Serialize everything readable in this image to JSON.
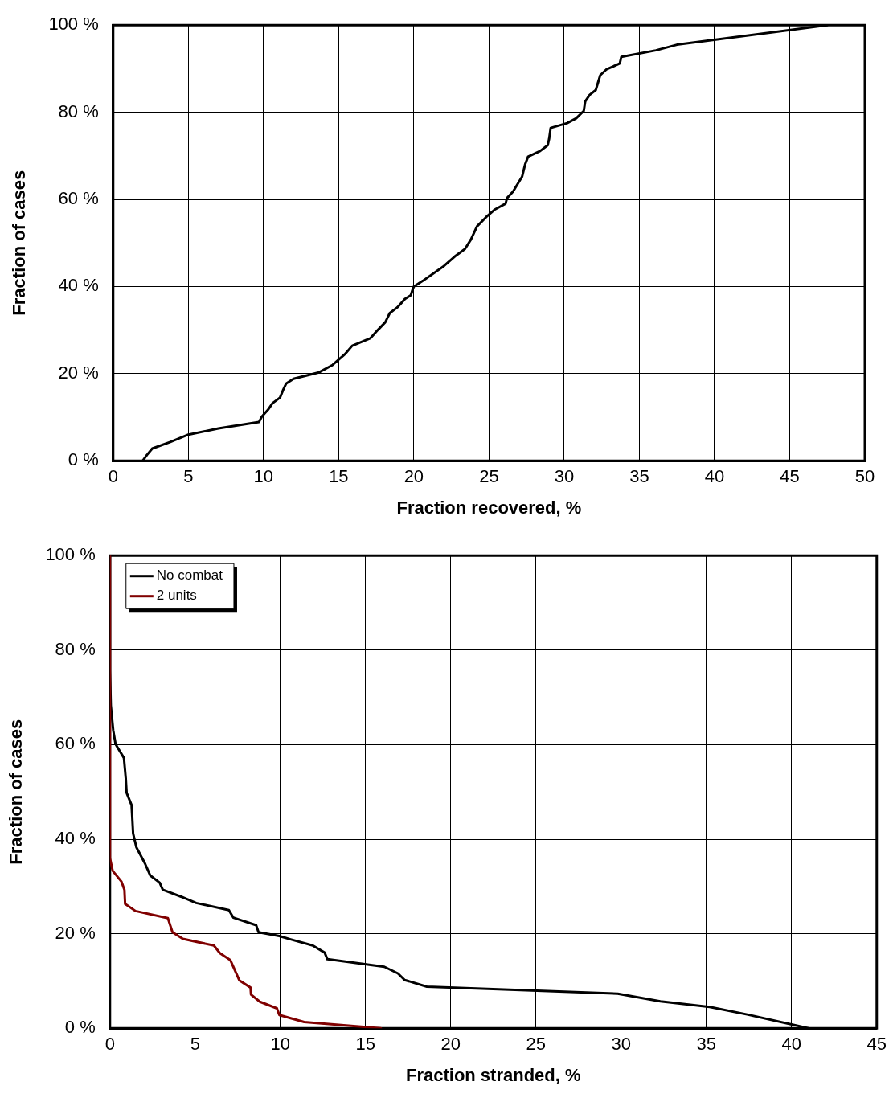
{
  "chart_data": [
    {
      "type": "line",
      "xlabel": "Fraction recovered, %",
      "ylabel": "Fraction of cases",
      "xlim": [
        0,
        50
      ],
      "ylim": [
        0,
        100
      ],
      "xticks": [
        0,
        5,
        10,
        15,
        20,
        25,
        30,
        35,
        40,
        45,
        50
      ],
      "yticks": [
        {
          "value": 0,
          "label": "0 %"
        },
        {
          "value": 20,
          "label": "20 %"
        },
        {
          "value": 40,
          "label": "40 %"
        },
        {
          "value": 60,
          "label": "60 %"
        },
        {
          "value": 80,
          "label": "80 %"
        },
        {
          "value": 100,
          "label": "100 %"
        }
      ],
      "grid": true,
      "marker": "none",
      "line_style": "solid",
      "series": [
        {
          "color": "#000000",
          "x": [
            1.97,
            2.24,
            2.6,
            3.8,
            5.0,
            7.0,
            9.7,
            9.9,
            10.3,
            10.6,
            11.1,
            11.3,
            11.5,
            12.0,
            13.7,
            14.6,
            15.4,
            15.9,
            17.1,
            17.6,
            18.1,
            18.4,
            18.9,
            19.4,
            19.8,
            19.9,
            20.0,
            20.6,
            22.0,
            22.8,
            23.4,
            23.8,
            24.2,
            24.8,
            25.4,
            26.1,
            26.2,
            26.6,
            27.2,
            27.4,
            27.6,
            28.4,
            28.9,
            29.0,
            29.1,
            30.2,
            30.8,
            31.3,
            31.4,
            31.7,
            32.1,
            32.4,
            32.8,
            33.7,
            33.8,
            36.1,
            37.5,
            47.5
          ],
          "values": [
            0,
            1.3,
            2.8,
            4.3,
            6.0,
            7.4,
            8.9,
            10.2,
            11.7,
            13.2,
            14.5,
            16.2,
            17.7,
            18.8,
            20.3,
            22.0,
            24.4,
            26.4,
            28.1,
            30.0,
            31.8,
            33.9,
            35.2,
            37.1,
            38.0,
            39.1,
            40.0,
            41.3,
            44.7,
            47.1,
            48.6,
            50.8,
            53.8,
            55.9,
            57.7,
            59.0,
            60.3,
            61.8,
            65.2,
            68.0,
            69.8,
            71.1,
            72.4,
            73.9,
            76.4,
            77.5,
            78.6,
            80.3,
            82.5,
            84.0,
            85.1,
            88.5,
            89.8,
            91.2,
            92.7,
            94.2,
            95.5,
            100
          ]
        }
      ]
    },
    {
      "type": "line",
      "xlabel": "Fraction stranded, %",
      "ylabel": "Fraction of cases",
      "xlim": [
        0,
        45
      ],
      "ylim": [
        0,
        100
      ],
      "xticks": [
        0,
        5,
        10,
        15,
        20,
        25,
        30,
        35,
        40,
        45
      ],
      "yticks": [
        {
          "value": 0,
          "label": "0 %"
        },
        {
          "value": 20,
          "label": "20 %"
        },
        {
          "value": 40,
          "label": "40 %"
        },
        {
          "value": 60,
          "label": "60 %"
        },
        {
          "value": 80,
          "label": "80 %"
        },
        {
          "value": 100,
          "label": "100 %"
        }
      ],
      "grid": true,
      "marker": "none",
      "line_style": "solid",
      "legend": "top left",
      "series": [
        {
          "name": "No combat",
          "color": "#000000",
          "x": [
            0,
            0,
            0.05,
            0.19,
            0.33,
            0.82,
            0.93,
            0.98,
            1.27,
            1.36,
            1.55,
            2.05,
            2.37,
            2.92,
            3.1,
            4.2,
            5.06,
            6.98,
            7.24,
            8.58,
            8.72,
            9.94,
            10.6,
            11.9,
            12.6,
            12.76,
            16.1,
            16.9,
            17.3,
            18.6,
            29.8,
            32.3,
            35.2,
            37.4,
            41.0
          ],
          "values": [
            100,
            75.7,
            68.3,
            63.1,
            60.1,
            57.2,
            52.8,
            49.8,
            47.2,
            41.2,
            38.3,
            34.9,
            32.3,
            30.8,
            29.3,
            27.8,
            26.5,
            25.0,
            23.4,
            21.8,
            20.3,
            19.5,
            18.8,
            17.5,
            16.0,
            14.6,
            13.0,
            11.6,
            10.2,
            8.8,
            7.3,
            5.7,
            4.5,
            2.9,
            0
          ]
        },
        {
          "name": "2 units",
          "color": "#800000",
          "x": [
            0,
            0,
            0.16,
            0.68,
            0.85,
            0.89,
            1.5,
            3.4,
            3.67,
            4.28,
            6.1,
            6.45,
            7.07,
            7.6,
            8.25,
            8.28,
            8.8,
            9.8,
            9.94,
            11.4,
            15.9
          ],
          "values": [
            100,
            36.0,
            33.3,
            31.0,
            29.3,
            26.3,
            24.8,
            23.3,
            20.3,
            18.9,
            17.5,
            15.9,
            14.4,
            10.1,
            8.6,
            7.1,
            5.6,
            4.2,
            2.8,
            1.3,
            0
          ]
        }
      ]
    }
  ]
}
